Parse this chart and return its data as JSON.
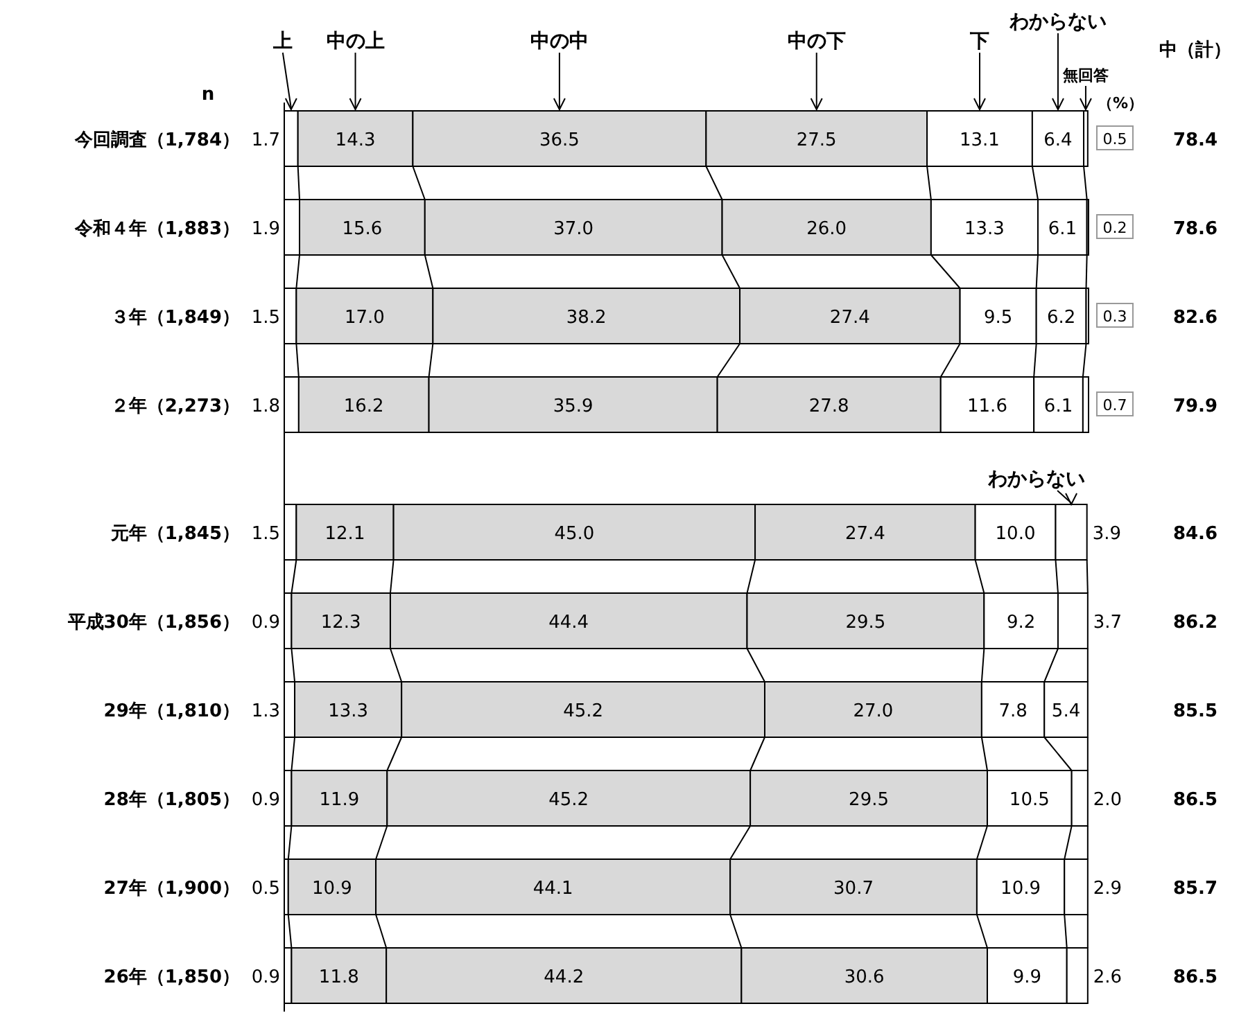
{
  "chart_data": {
    "type": "bar",
    "orientation": "horizontal",
    "stacked": true,
    "legend": "top",
    "categories": [
      "今回調査（1,784）",
      "令和４年（1,883）",
      "３年（1,849）",
      "２年（2,273）",
      "元年（1,845）",
      "平成30年（1,856）",
      "29年（1,810）",
      "28年（1,805）",
      "27年（1,900）",
      "26年（1,850）"
    ],
    "series": [
      {
        "name": "上",
        "color": "#ffffff",
        "values": [
          1.7,
          1.9,
          1.5,
          1.8,
          1.5,
          0.9,
          1.3,
          0.9,
          0.5,
          0.9
        ],
        "value_labels": [
          "1.7",
          "1.9",
          "1.5",
          "1.8",
          "1.5",
          "0.9",
          "1.3",
          "0.9",
          "0.5",
          "0.9"
        ]
      },
      {
        "name": "中の上",
        "color": "#d9d9d9",
        "values": [
          14.3,
          15.6,
          17.0,
          16.2,
          12.1,
          12.3,
          13.3,
          11.9,
          10.9,
          11.8
        ],
        "value_labels": [
          "14.3",
          "15.6",
          "17.0",
          "16.2",
          "12.1",
          "12.3",
          "13.3",
          "11.9",
          "10.9",
          "11.8"
        ]
      },
      {
        "name": "中の中",
        "color": "#d9d9d9",
        "values": [
          36.5,
          37.0,
          38.2,
          35.9,
          45.0,
          44.4,
          45.2,
          45.2,
          44.1,
          44.2
        ],
        "value_labels": [
          "36.5",
          "37.0",
          "38.2",
          "35.9",
          "45.0",
          "44.4",
          "45.2",
          "45.2",
          "44.1",
          "44.2"
        ]
      },
      {
        "name": "中の下",
        "color": "#d9d9d9",
        "values": [
          27.5,
          26.0,
          27.4,
          27.8,
          27.4,
          29.5,
          27.0,
          29.5,
          30.7,
          30.6
        ],
        "value_labels": [
          "27.5",
          "26.0",
          "27.4",
          "27.8",
          "27.4",
          "29.5",
          "27.0",
          "29.5",
          "30.7",
          "30.6"
        ]
      },
      {
        "name": "下",
        "color": "#ffffff",
        "values": [
          13.1,
          13.3,
          9.5,
          11.6,
          10.0,
          9.2,
          7.8,
          10.5,
          10.9,
          9.9
        ],
        "value_labels": [
          "13.1",
          "13.3",
          "9.5",
          "11.6",
          "10.0",
          "9.2",
          "7.8",
          "10.5",
          "10.9",
          "9.9"
        ]
      },
      {
        "name": "わからない",
        "color": "#ffffff",
        "values": [
          6.4,
          6.1,
          6.2,
          6.1,
          3.9,
          3.7,
          5.4,
          2.0,
          2.9,
          2.6
        ],
        "value_labels": [
          "6.4",
          "6.1",
          "6.2",
          "6.1",
          "3.9",
          "3.7",
          "5.4",
          "2.0",
          "2.9",
          "2.6"
        ]
      },
      {
        "name": "無回答",
        "color": "#ffffff",
        "values": [
          0.5,
          0.2,
          0.3,
          0.7,
          null,
          null,
          null,
          null,
          null,
          null
        ],
        "value_labels": [
          "0.5",
          "0.2",
          "0.3",
          "0.7",
          null,
          null,
          null,
          null,
          null,
          null
        ]
      }
    ],
    "annotations": [
      "n",
      "（%）",
      "中（計）",
      "わからない",
      "78.4",
      "78.6",
      "82.6",
      "79.9",
      "84.6",
      "86.2",
      "85.5",
      "86.5",
      "85.7",
      "86.5"
    ]
  }
}
